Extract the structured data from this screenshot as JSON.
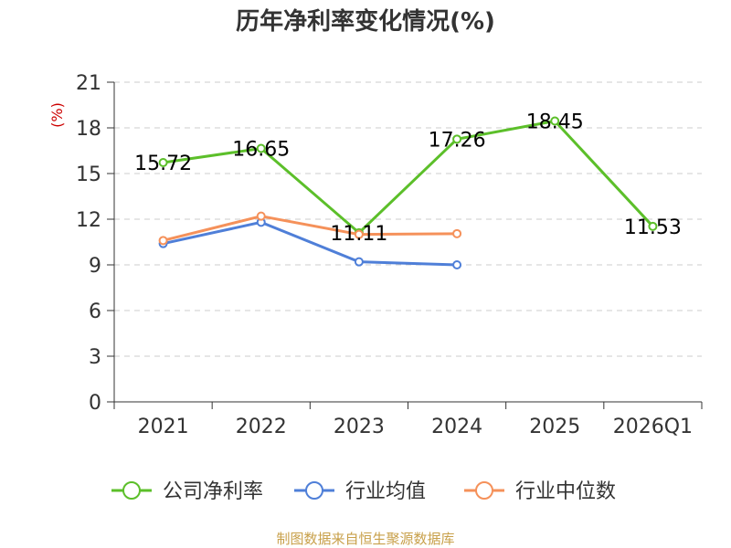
{
  "chart_data": {
    "type": "line",
    "title": "历年净利率变化情况(%)",
    "ylabel": "(%)",
    "xlabel": "",
    "categories": [
      "2021",
      "2022",
      "2023",
      "2024",
      "2025",
      "2026Q1"
    ],
    "ylim": [
      0,
      21
    ],
    "yticks": [
      0,
      3,
      6,
      9,
      12,
      15,
      18,
      21
    ],
    "grid": true,
    "legend_position": "bottom",
    "series": [
      {
        "name": "公司净利率",
        "color": "#5cbf2a",
        "values": [
          15.72,
          16.65,
          11.11,
          17.26,
          18.45,
          11.53
        ],
        "labels": [
          "15.72",
          "16.65",
          "11.11",
          "17.26",
          "18.45",
          "11.53"
        ]
      },
      {
        "name": "行业均值",
        "color": "#4f7fd8",
        "values": [
          10.4,
          11.8,
          9.2,
          9.0,
          null,
          null
        ]
      },
      {
        "name": "行业中位数",
        "color": "#f5915a",
        "values": [
          10.6,
          12.2,
          11.0,
          11.05,
          null,
          null
        ]
      }
    ],
    "source": "制图数据来自恒生聚源数据库"
  }
}
